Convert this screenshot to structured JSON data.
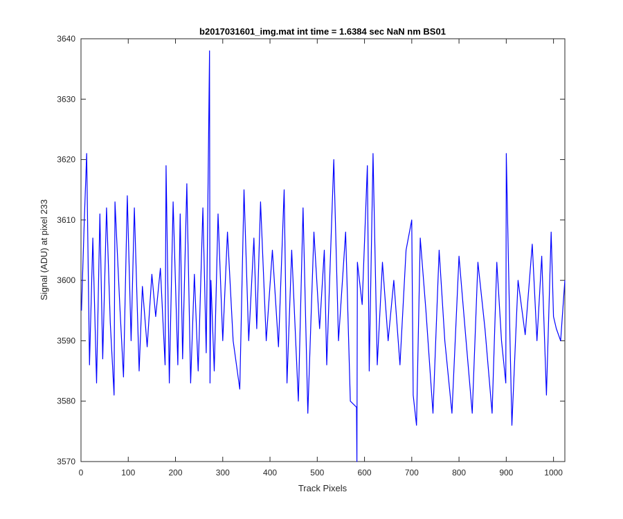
{
  "chart_data": {
    "type": "line",
    "title": "b2017031601_img.mat int time = 1.6384 sec  NaN nm BS01",
    "xlabel": "Track Pixels",
    "ylabel": "Signal (ADU) at pixel 233",
    "xlim": [
      0,
      1024
    ],
    "ylim": [
      3570,
      3640
    ],
    "xticks": [
      0,
      100,
      200,
      300,
      400,
      500,
      600,
      700,
      800,
      900,
      1000
    ],
    "yticks": [
      3570,
      3580,
      3590,
      3600,
      3610,
      3620,
      3630,
      3640
    ],
    "grid": false,
    "line_color": "#0000ff",
    "series": [
      {
        "x": [
          1,
          7,
          12,
          18,
          25,
          33,
          40,
          46,
          54,
          62,
          70,
          72,
          82,
          90,
          98,
          106,
          113,
          123,
          130,
          140,
          150,
          158,
          168,
          178,
          180,
          187,
          195,
          205,
          210,
          215,
          224,
          232,
          240,
          248,
          258,
          265,
          272,
          273,
          275,
          282,
          290,
          300,
          310,
          322,
          336,
          345,
          355,
          366,
          372,
          380,
          392,
          405,
          418,
          430,
          436,
          446,
          460,
          470,
          480,
          493,
          505,
          515,
          520,
          535,
          545,
          560,
          570,
          583,
          584,
          585,
          595,
          606,
          610,
          618,
          627,
          638,
          650,
          662,
          675,
          688,
          700,
          703,
          710,
          718,
          730,
          745,
          758,
          770,
          785,
          800,
          815,
          828,
          840,
          855,
          870,
          880,
          890,
          899,
          900,
          908,
          912,
          925,
          940,
          955,
          965,
          975,
          985,
          995,
          1000,
          1006,
          1015,
          1024
        ],
        "y": [
          3595,
          3610,
          3621,
          3586,
          3607,
          3583,
          3611,
          3587,
          3612,
          3593,
          3581,
          3613,
          3596,
          3584,
          3614,
          3590,
          3612,
          3585,
          3599,
          3589,
          3601,
          3594,
          3602,
          3586,
          3619,
          3583,
          3613,
          3586,
          3611,
          3587,
          3616,
          3583,
          3601,
          3585,
          3612,
          3588,
          3638,
          3583,
          3600,
          3585,
          3611,
          3590,
          3608,
          3590,
          3582,
          3615,
          3590,
          3607,
          3592,
          3613,
          3590,
          3605,
          3589,
          3615,
          3583,
          3605,
          3580,
          3612,
          3578,
          3608,
          3592,
          3605,
          3586,
          3620,
          3590,
          3608,
          3580,
          3579,
          3570,
          3603,
          3596,
          3619,
          3585,
          3621,
          3586,
          3603,
          3590,
          3600,
          3586,
          3605,
          3610,
          3581,
          3576,
          3607,
          3595,
          3578,
          3605,
          3590,
          3578,
          3604,
          3590,
          3578,
          3603,
          3592,
          3578,
          3603,
          3590,
          3583,
          3621,
          3590,
          3576,
          3600,
          3591,
          3606,
          3590,
          3604,
          3581,
          3608,
          3594,
          3592,
          3590,
          3600
        ]
      }
    ]
  }
}
